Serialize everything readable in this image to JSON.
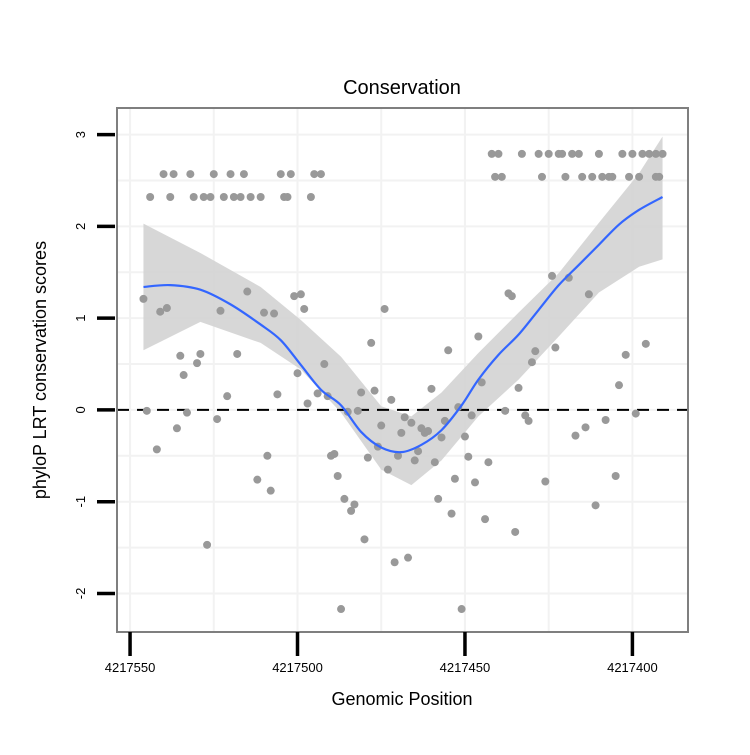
{
  "chart_data": {
    "type": "scatter",
    "title": "Conservation",
    "xlabel": "Genomic Position",
    "ylabel": "phyloP LRT conservation scores",
    "xlim": [
      4217553.9,
      4217383.4
    ],
    "x_reversed": true,
    "ylim": [
      -2.42,
      3.29
    ],
    "x_ticks": [
      4217550,
      4217500,
      4217450,
      4217400
    ],
    "x_tick_labels": [
      "4217550",
      "4217500",
      "4217450",
      "4217400"
    ],
    "y_ticks": [
      -2,
      -1,
      0,
      1,
      2,
      3
    ],
    "y_tick_labels": [
      "-2",
      "-1",
      "0",
      "1",
      "2",
      "3"
    ],
    "grid": true,
    "reference_line": {
      "y": 0,
      "style": "dashed"
    },
    "colors": {
      "points": "#999999",
      "smooth": "#3366FF",
      "band": "#d3d3d3",
      "border": "#7f7f7f",
      "grid": "#f2f2f2"
    },
    "points": [
      [
        4217540,
        2.57
      ],
      [
        4217537,
        2.57
      ],
      [
        4217532,
        2.57
      ],
      [
        4217525,
        2.57
      ],
      [
        4217520,
        2.57
      ],
      [
        4217516,
        2.57
      ],
      [
        4217505,
        2.57
      ],
      [
        4217502,
        2.57
      ],
      [
        4217495,
        2.57
      ],
      [
        4217493,
        2.57
      ],
      [
        4217544,
        2.32
      ],
      [
        4217538,
        2.32
      ],
      [
        4217531,
        2.32
      ],
      [
        4217528,
        2.32
      ],
      [
        4217526,
        2.32
      ],
      [
        4217522,
        2.32
      ],
      [
        4217519,
        2.32
      ],
      [
        4217517,
        2.32
      ],
      [
        4217514,
        2.32
      ],
      [
        4217511,
        2.32
      ],
      [
        4217504,
        2.32
      ],
      [
        4217503,
        2.32
      ],
      [
        4217496,
        2.32
      ],
      [
        4217442,
        2.79
      ],
      [
        4217440,
        2.79
      ],
      [
        4217433,
        2.79
      ],
      [
        4217428,
        2.79
      ],
      [
        4217425,
        2.79
      ],
      [
        4217422,
        2.79
      ],
      [
        4217421,
        2.79
      ],
      [
        4217418,
        2.79
      ],
      [
        4217416,
        2.79
      ],
      [
        4217410,
        2.79
      ],
      [
        4217403,
        2.79
      ],
      [
        4217400,
        2.79
      ],
      [
        4217397,
        2.79
      ],
      [
        4217395,
        2.79
      ],
      [
        4217393,
        2.79
      ],
      [
        4217391,
        2.79
      ],
      [
        4217441,
        2.54
      ],
      [
        4217439,
        2.54
      ],
      [
        4217427,
        2.54
      ],
      [
        4217420,
        2.54
      ],
      [
        4217415,
        2.54
      ],
      [
        4217412,
        2.54
      ],
      [
        4217409,
        2.54
      ],
      [
        4217407,
        2.54
      ],
      [
        4217406,
        2.54
      ],
      [
        4217401,
        2.54
      ],
      [
        4217398,
        2.54
      ],
      [
        4217393,
        2.54
      ],
      [
        4217392,
        2.54
      ],
      [
        4217546,
        1.21
      ],
      [
        4217541,
        1.07
      ],
      [
        4217539,
        1.11
      ],
      [
        4217545,
        -0.01
      ],
      [
        4217542,
        -0.43
      ],
      [
        4217536,
        -0.2
      ],
      [
        4217535,
        0.59
      ],
      [
        4217534,
        0.38
      ],
      [
        4217533,
        -0.03
      ],
      [
        4217530,
        0.51
      ],
      [
        4217529,
        0.61
      ],
      [
        4217527,
        -1.47
      ],
      [
        4217524,
        -0.1
      ],
      [
        4217523,
        1.08
      ],
      [
        4217521,
        0.15
      ],
      [
        4217518,
        0.61
      ],
      [
        4217515,
        1.29
      ],
      [
        4217512,
        -0.76
      ],
      [
        4217510,
        1.06
      ],
      [
        4217509,
        -0.5
      ],
      [
        4217508,
        -0.88
      ],
      [
        4217507,
        1.05
      ],
      [
        4217506,
        0.17
      ],
      [
        4217501,
        1.24
      ],
      [
        4217499,
        1.26
      ],
      [
        4217500,
        0.4
      ],
      [
        4217498,
        1.1
      ],
      [
        4217497,
        0.07
      ],
      [
        4217494,
        0.18
      ],
      [
        4217492,
        0.5
      ],
      [
        4217491,
        0.15
      ],
      [
        4217490,
        -0.5
      ],
      [
        4217489,
        -0.48
      ],
      [
        4217488,
        -0.72
      ],
      [
        4217487,
        -2.17
      ],
      [
        4217486,
        -0.97
      ],
      [
        4217485,
        -0.02
      ],
      [
        4217483,
        -1.03
      ],
      [
        4217484,
        -1.1
      ],
      [
        4217482,
        -0.01
      ],
      [
        4217481,
        0.19
      ],
      [
        4217480,
        -1.41
      ],
      [
        4217479,
        -0.52
      ],
      [
        4217478,
        0.73
      ],
      [
        4217477,
        0.21
      ],
      [
        4217476,
        -0.4
      ],
      [
        4217475,
        -0.17
      ],
      [
        4217474,
        1.1
      ],
      [
        4217473,
        -0.65
      ],
      [
        4217472,
        0.11
      ],
      [
        4217471,
        -1.66
      ],
      [
        4217470,
        -0.5
      ],
      [
        4217469,
        -0.25
      ],
      [
        4217468,
        -0.08
      ],
      [
        4217467,
        -1.61
      ],
      [
        4217466,
        -0.14
      ],
      [
        4217464,
        -0.45
      ],
      [
        4217465,
        -0.55
      ],
      [
        4217463,
        -0.2
      ],
      [
        4217462,
        -0.25
      ],
      [
        4217461,
        -0.23
      ],
      [
        4217460,
        0.23
      ],
      [
        4217459,
        -0.57
      ],
      [
        4217458,
        -0.97
      ],
      [
        4217457,
        -0.3
      ],
      [
        4217456,
        -0.12
      ],
      [
        4217455,
        0.65
      ],
      [
        4217454,
        -1.13
      ],
      [
        4217453,
        -0.75
      ],
      [
        4217452,
        0.03
      ],
      [
        4217451,
        -2.17
      ],
      [
        4217450,
        -0.29
      ],
      [
        4217449,
        -0.51
      ],
      [
        4217448,
        -0.06
      ],
      [
        4217447,
        -0.79
      ],
      [
        4217446,
        0.8
      ],
      [
        4217445,
        0.3
      ],
      [
        4217444,
        -1.19
      ],
      [
        4217443,
        -0.57
      ],
      [
        4217438,
        -0.01
      ],
      [
        4217437,
        1.27
      ],
      [
        4217436,
        1.24
      ],
      [
        4217435,
        -1.33
      ],
      [
        4217434,
        0.24
      ],
      [
        4217432,
        -0.06
      ],
      [
        4217431,
        -0.12
      ],
      [
        4217430,
        0.52
      ],
      [
        4217429,
        0.64
      ],
      [
        4217426,
        -0.78
      ],
      [
        4217424,
        1.46
      ],
      [
        4217423,
        0.68
      ],
      [
        4217419,
        1.44
      ],
      [
        4217417,
        -0.28
      ],
      [
        4217414,
        -0.19
      ],
      [
        4217413,
        1.26
      ],
      [
        4217411,
        -1.04
      ],
      [
        4217408,
        -0.11
      ],
      [
        4217405,
        -0.72
      ],
      [
        4217404,
        0.27
      ],
      [
        4217402,
        0.6
      ],
      [
        4217399,
        -0.04
      ],
      [
        4217396,
        0.72
      ]
    ],
    "smooth": {
      "x": [
        4217546,
        4217538,
        4217529,
        4217520,
        4217511,
        4217505,
        4217499,
        4217493,
        4217487,
        4217481,
        4217475,
        4217469,
        4217463,
        4217457,
        4217451,
        4217446,
        4217440,
        4217434,
        4217428,
        4217422,
        4217416,
        4217410,
        4217404,
        4217398,
        4217391
      ],
      "fit": [
        1.34,
        1.36,
        1.31,
        1.15,
        0.93,
        0.76,
        0.49,
        0.22,
        0.05,
        -0.24,
        -0.41,
        -0.46,
        -0.38,
        -0.22,
        0.05,
        0.33,
        0.6,
        0.82,
        1.09,
        1.36,
        1.58,
        1.8,
        2.02,
        2.18,
        2.32
      ]
    },
    "band": {
      "x": [
        4217546,
        4217529,
        4217511,
        4217499,
        4217487,
        4217475,
        4217466,
        4217457,
        4217446,
        4217434,
        4217422,
        4217410,
        4217398,
        4217391
      ],
      "upper": [
        2.03,
        1.71,
        1.34,
        0.98,
        0.58,
        0.04,
        -0.07,
        0.19,
        0.62,
        1.06,
        1.49,
        2.04,
        2.58,
        2.98
      ],
      "lower": [
        0.65,
        0.96,
        0.73,
        0.44,
        -0.03,
        -0.65,
        -0.82,
        -0.55,
        -0.07,
        0.33,
        0.8,
        1.28,
        1.56,
        1.64
      ]
    }
  }
}
